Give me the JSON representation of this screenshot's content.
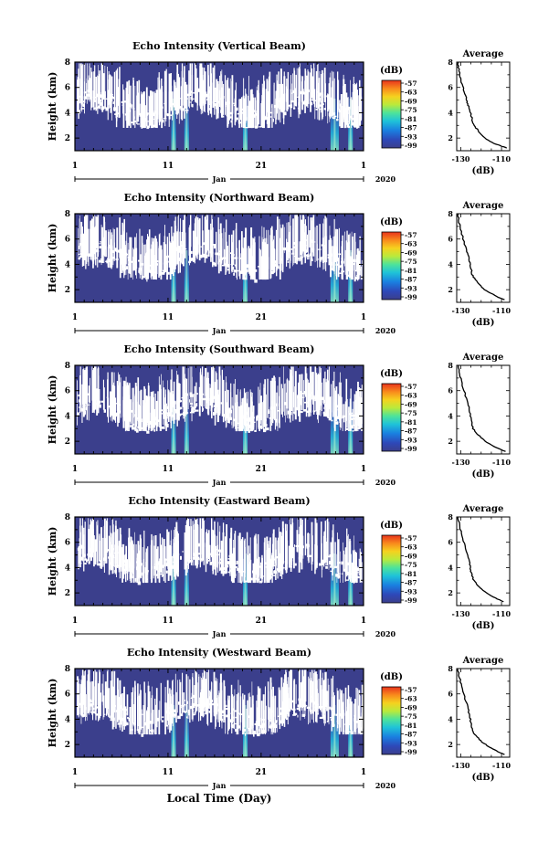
{
  "figure": {
    "xlabel": "Local Time (Day)"
  },
  "chart_data": [
    {
      "type": "heatmap",
      "title": "Echo Intensity (Vertical Beam)",
      "ylabel": "Height (km)",
      "yticks": [
        "2",
        "4",
        "6",
        "8"
      ],
      "ylim": [
        1,
        8
      ],
      "xticks": [
        "1",
        "11",
        "21",
        "1"
      ],
      "month": "Jan",
      "year": "2020",
      "colorbar": {
        "unit": "(dB)",
        "ticks": [
          "-57",
          "-63",
          "-69",
          "-75",
          "-81",
          "-87",
          "-93",
          "-99"
        ]
      },
      "average": {
        "title": "Average",
        "xlabel": "(dB)",
        "xticks": [
          "-130",
          "-110"
        ],
        "xlim": [
          -132,
          -106
        ],
        "yticks": [
          "2",
          "4",
          "6",
          "8"
        ],
        "ylim": [
          1,
          8
        ],
        "profile": [
          [
            -131.5,
            8.0
          ],
          [
            -131.2,
            7.6
          ],
          [
            -130.5,
            7.0
          ],
          [
            -129.6,
            6.4
          ],
          [
            -128.5,
            5.8
          ],
          [
            -127.4,
            5.2
          ],
          [
            -126.8,
            4.8
          ],
          [
            -126.0,
            4.4
          ],
          [
            -125.2,
            4.0
          ],
          [
            -124.6,
            3.6
          ],
          [
            -124.0,
            3.2
          ],
          [
            -122.5,
            2.8
          ],
          [
            -120.5,
            2.4
          ],
          [
            -117.5,
            1.9
          ],
          [
            -114.0,
            1.6
          ],
          [
            -110.5,
            1.4
          ],
          [
            -107.5,
            1.2
          ]
        ]
      },
      "bright_days": [
        11.6,
        13.0,
        19.3,
        28.9,
        30.6
      ]
    },
    {
      "type": "heatmap",
      "title": "Echo Intensity (Northward Beam)",
      "ylabel": "Height (km)",
      "yticks": [
        "2",
        "4",
        "6",
        "8"
      ],
      "ylim": [
        1,
        8
      ],
      "xticks": [
        "1",
        "11",
        "21",
        "1"
      ],
      "month": "Jan",
      "year": "2020",
      "colorbar": {
        "unit": "(dB)",
        "ticks": [
          "-57",
          "-63",
          "-69",
          "-75",
          "-81",
          "-87",
          "-93",
          "-99"
        ]
      },
      "average": {
        "title": "Average",
        "xlabel": "(dB)",
        "xticks": [
          "-130",
          "-110"
        ],
        "xlim": [
          -132,
          -106
        ],
        "yticks": [
          "2",
          "4",
          "6",
          "8"
        ],
        "ylim": [
          1,
          8
        ],
        "profile": [
          [
            -131.5,
            8.0
          ],
          [
            -130.8,
            7.3
          ],
          [
            -129.8,
            6.6
          ],
          [
            -128.4,
            5.8
          ],
          [
            -127.0,
            5.0
          ],
          [
            -126.0,
            4.5
          ],
          [
            -125.5,
            4.0
          ],
          [
            -124.8,
            3.6
          ],
          [
            -124.4,
            3.2
          ],
          [
            -123.0,
            2.8
          ],
          [
            -121.0,
            2.4
          ],
          [
            -118.5,
            2.0
          ],
          [
            -115.0,
            1.7
          ],
          [
            -111.5,
            1.4
          ],
          [
            -108.5,
            1.2
          ]
        ]
      },
      "bright_days": [
        11.6,
        13.0,
        19.3,
        28.9,
        30.6
      ]
    },
    {
      "type": "heatmap",
      "title": "Echo Intensity (Southward Beam)",
      "ylabel": "Height (km)",
      "yticks": [
        "2",
        "4",
        "6",
        "8"
      ],
      "ylim": [
        1,
        8
      ],
      "xticks": [
        "1",
        "11",
        "21",
        "1"
      ],
      "month": "Jan",
      "year": "2020",
      "colorbar": {
        "unit": "(dB)",
        "ticks": [
          "-57",
          "-63",
          "-69",
          "-75",
          "-81",
          "-87",
          "-93",
          "-99"
        ]
      },
      "average": {
        "title": "Average",
        "xlabel": "(dB)",
        "xticks": [
          "-130",
          "-110"
        ],
        "xlim": [
          -132,
          -106
        ],
        "yticks": [
          "2",
          "4",
          "6",
          "8"
        ],
        "ylim": [
          1,
          8
        ],
        "profile": [
          [
            -131.5,
            8.0
          ],
          [
            -130.6,
            7.3
          ],
          [
            -129.5,
            6.6
          ],
          [
            -128.0,
            5.8
          ],
          [
            -126.5,
            5.0
          ],
          [
            -125.6,
            4.4
          ],
          [
            -125.2,
            4.0
          ],
          [
            -124.6,
            3.5
          ],
          [
            -124.0,
            3.0
          ],
          [
            -122.0,
            2.6
          ],
          [
            -119.5,
            2.2
          ],
          [
            -116.0,
            1.8
          ],
          [
            -112.5,
            1.5
          ],
          [
            -108.0,
            1.2
          ]
        ]
      },
      "bright_days": [
        11.6,
        13.0,
        19.3,
        28.9,
        30.6
      ]
    },
    {
      "type": "heatmap",
      "title": "Echo Intensity (Eastward Beam)",
      "ylabel": "Height (km)",
      "yticks": [
        "2",
        "4",
        "6",
        "8"
      ],
      "ylim": [
        1,
        8
      ],
      "xticks": [
        "1",
        "11",
        "21",
        "1"
      ],
      "month": "Jan",
      "year": "2020",
      "colorbar": {
        "unit": "(dB)",
        "ticks": [
          "-57",
          "-63",
          "-69",
          "-75",
          "-81",
          "-87",
          "-93",
          "-99"
        ]
      },
      "average": {
        "title": "Average",
        "xlabel": "(dB)",
        "xticks": [
          "-130",
          "-110"
        ],
        "xlim": [
          -132,
          -106
        ],
        "yticks": [
          "2",
          "4",
          "6",
          "8"
        ],
        "ylim": [
          1,
          8
        ],
        "profile": [
          [
            -131.5,
            8.0
          ],
          [
            -130.7,
            7.4
          ],
          [
            -129.7,
            6.7
          ],
          [
            -128.3,
            5.9
          ],
          [
            -126.8,
            5.1
          ],
          [
            -125.9,
            4.5
          ],
          [
            -125.4,
            4.0
          ],
          [
            -124.8,
            3.6
          ],
          [
            -124.0,
            3.1
          ],
          [
            -122.3,
            2.7
          ],
          [
            -120.0,
            2.3
          ],
          [
            -116.5,
            1.9
          ],
          [
            -113.0,
            1.6
          ],
          [
            -109.0,
            1.3
          ]
        ]
      },
      "bright_days": [
        11.6,
        13.0,
        19.3,
        28.9,
        30.6
      ]
    },
    {
      "type": "heatmap",
      "title": "Echo Intensity (Westward Beam)",
      "ylabel": "Height (km)",
      "yticks": [
        "2",
        "4",
        "6",
        "8"
      ],
      "ylim": [
        1,
        8
      ],
      "xticks": [
        "1",
        "11",
        "21",
        "1"
      ],
      "month": "Jan",
      "year": "2020",
      "colorbar": {
        "unit": "(dB)",
        "ticks": [
          "-57",
          "-63",
          "-69",
          "-75",
          "-81",
          "-87",
          "-93",
          "-99"
        ]
      },
      "average": {
        "title": "Average",
        "xlabel": "(dB)",
        "xticks": [
          "-130",
          "-110"
        ],
        "xlim": [
          -132,
          -106
        ],
        "yticks": [
          "2",
          "4",
          "6",
          "8"
        ],
        "ylim": [
          1,
          8
        ],
        "profile": [
          [
            -131.5,
            8.0
          ],
          [
            -130.6,
            7.3
          ],
          [
            -129.6,
            6.6
          ],
          [
            -128.2,
            5.8
          ],
          [
            -126.7,
            5.0
          ],
          [
            -125.8,
            4.4
          ],
          [
            -125.3,
            4.0
          ],
          [
            -124.7,
            3.5
          ],
          [
            -124.0,
            3.0
          ],
          [
            -122.0,
            2.6
          ],
          [
            -119.5,
            2.2
          ],
          [
            -116.0,
            1.8
          ],
          [
            -112.5,
            1.5
          ],
          [
            -108.5,
            1.2
          ]
        ]
      },
      "bright_days": [
        11.6,
        13.0,
        19.3,
        28.9,
        30.6
      ]
    }
  ]
}
